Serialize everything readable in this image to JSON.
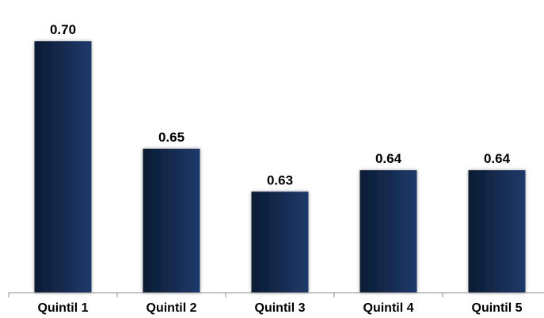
{
  "chart_data": {
    "type": "bar",
    "categories": [
      "Quintil 1",
      "Quintil 2",
      "Quintil 3",
      "Quintil 4",
      "Quintil 5"
    ],
    "values": [
      0.7,
      0.65,
      0.63,
      0.64,
      0.64
    ],
    "value_labels": [
      "0.70",
      "0.65",
      "0.63",
      "0.64",
      "0.64"
    ],
    "title": "",
    "xlabel": "",
    "ylabel": "",
    "ylim": [
      0.583,
      0.71
    ],
    "grid": false,
    "legend": "none",
    "colors": {
      "bar_dark": "#0b1b33",
      "bar_light": "#1f3a6b",
      "axis": "#8c8c8c",
      "text": "#000000"
    }
  }
}
